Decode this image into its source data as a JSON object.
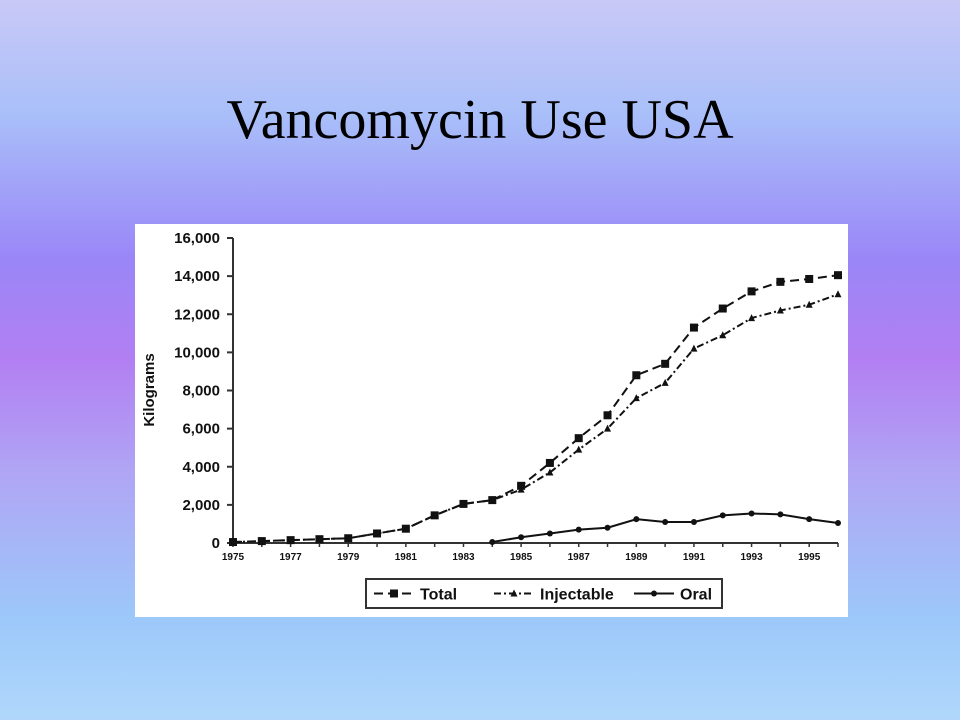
{
  "slide": {
    "title": "Vancomycin Use USA"
  },
  "chart_data": {
    "type": "line",
    "title": "",
    "xlabel": "",
    "ylabel": "Kilograms",
    "x": [
      1975,
      1976,
      1977,
      1978,
      1979,
      1980,
      1981,
      1982,
      1983,
      1984,
      1985,
      1986,
      1987,
      1988,
      1989,
      1990,
      1991,
      1992,
      1993,
      1994,
      1995,
      1996
    ],
    "xticks": [
      "1975",
      "1977",
      "1979",
      "1981",
      "1983",
      "1985",
      "1987",
      "1989",
      "1991",
      "1993",
      "1995"
    ],
    "xlim": [
      1975,
      1996
    ],
    "ylim": [
      0,
      16000
    ],
    "yticks": [
      0,
      2000,
      4000,
      6000,
      8000,
      10000,
      12000,
      14000,
      16000
    ],
    "ytick_labels": [
      "0",
      "2,000",
      "4,000",
      "6,000",
      "8,000",
      "10,000",
      "12,000",
      "14,000",
      "16,000"
    ],
    "grid": false,
    "legend_position": "bottom",
    "series": [
      {
        "name": "Total",
        "color": "#111111",
        "line_style": "dashed",
        "marker": "square",
        "values": [
          50,
          100,
          150,
          200,
          250,
          500,
          750,
          1450,
          2050,
          2250,
          3000,
          4200,
          5500,
          6700,
          8800,
          9400,
          11300,
          12300,
          13200,
          13700,
          13850,
          14050
        ]
      },
      {
        "name": "Injectable",
        "color": "#111111",
        "line_style": "dash-dot",
        "marker": "triangle",
        "values": [
          50,
          100,
          150,
          200,
          250,
          500,
          750,
          1450,
          2050,
          2250,
          2800,
          3700,
          4900,
          6000,
          7600,
          8400,
          10200,
          10900,
          11800,
          12200,
          12500,
          13050
        ]
      },
      {
        "name": "Oral",
        "color": "#111111",
        "line_style": "solid",
        "marker": "circle",
        "values": [
          null,
          null,
          null,
          null,
          null,
          null,
          null,
          null,
          null,
          50,
          300,
          500,
          700,
          800,
          1250,
          1100,
          1100,
          1450,
          1550,
          1500,
          1250,
          1050
        ]
      }
    ]
  }
}
